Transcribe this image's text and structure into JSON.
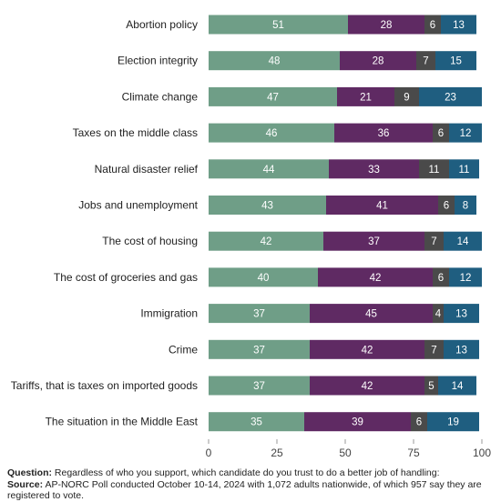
{
  "chart_data": {
    "type": "bar",
    "orientation": "horizontal",
    "stacked": true,
    "categories": [
      "Abortion policy",
      "Election integrity",
      "Climate change",
      "Taxes on the middle class",
      "Natural disaster relief",
      "Jobs and unemployment",
      "The cost of housing",
      "The cost of groceries and gas",
      "Immigration",
      "Crime",
      "Tariffs, that is taxes on imported goods",
      "The situation in the Middle East"
    ],
    "series": [
      {
        "color": "#6f9e87",
        "values": [
          51,
          48,
          47,
          46,
          44,
          43,
          42,
          40,
          37,
          37,
          37,
          35
        ]
      },
      {
        "color": "#5f2a63",
        "values": [
          28,
          28,
          21,
          36,
          33,
          41,
          37,
          42,
          45,
          42,
          42,
          39
        ]
      },
      {
        "color": "#4a4a4a",
        "values": [
          6,
          7,
          9,
          6,
          11,
          6,
          7,
          6,
          4,
          7,
          5,
          6
        ]
      },
      {
        "color": "#1f5e80",
        "values": [
          13,
          15,
          23,
          12,
          11,
          8,
          14,
          12,
          13,
          13,
          14,
          19
        ]
      }
    ],
    "xlim": [
      0,
      100
    ],
    "xticks": [
      "0",
      "25",
      "50",
      "75",
      "100"
    ],
    "title": "",
    "xlabel": "",
    "ylabel": "",
    "data_labels": true
  },
  "footnote": {
    "question_label": "Question:",
    "question_text": "Regardless of who you support, which candidate do you trust to do a better job of handling:",
    "source_label": "Source:",
    "source_text": "AP-NORC Poll conducted October 10-14, 2024 with 1,072 adults nationwide, of which 957 say they are registered to vote."
  }
}
